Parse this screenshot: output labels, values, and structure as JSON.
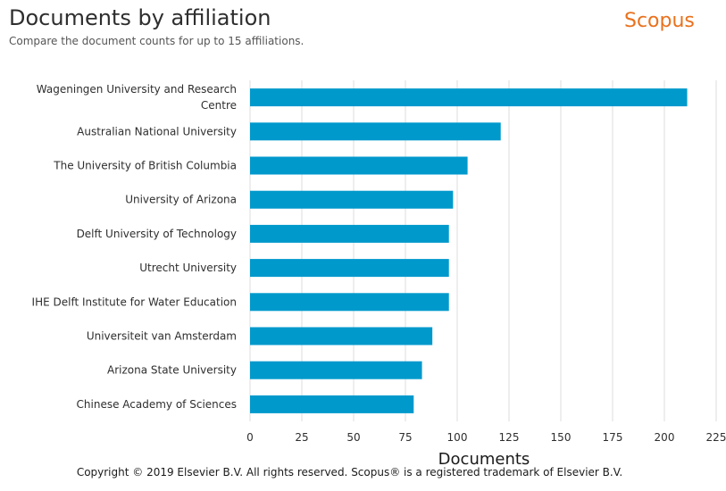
{
  "header": {
    "title": "Documents by affiliation",
    "subtitle": "Compare the document counts for up to 15 affiliations.",
    "brand": "Scopus"
  },
  "footer": {
    "copyright": "Copyright © 2019 Elsevier B.V. All rights reserved. Scopus® is a registered trademark of Elsevier B.V."
  },
  "colors": {
    "bar": "#0099cc",
    "brand": "#e9711c",
    "grid": "#dddddd"
  },
  "chart_data": {
    "type": "bar",
    "orientation": "horizontal",
    "title": "Documents by affiliation",
    "subtitle": "Compare the document counts for up to 15 affiliations.",
    "xlabel": "Documents",
    "ylabel": "",
    "categories": [
      [
        "Wageningen University and Research",
        "Centre"
      ],
      [
        "Australian National University"
      ],
      [
        "The University of British Columbia"
      ],
      [
        "University of Arizona"
      ],
      [
        "Delft University of Technology"
      ],
      [
        "Utrecht University"
      ],
      [
        "IHE Delft Institute for Water Education"
      ],
      [
        "Universiteit van Amsterdam"
      ],
      [
        "Arizona State University"
      ],
      [
        "Chinese Academy of Sciences"
      ]
    ],
    "values": [
      211,
      121,
      105,
      98,
      96,
      96,
      96,
      88,
      83,
      79
    ],
    "xlim": [
      0,
      225
    ],
    "xticks": [
      0,
      25,
      50,
      75,
      100,
      125,
      150,
      175,
      200,
      225
    ],
    "grid": true,
    "legend": "none"
  }
}
